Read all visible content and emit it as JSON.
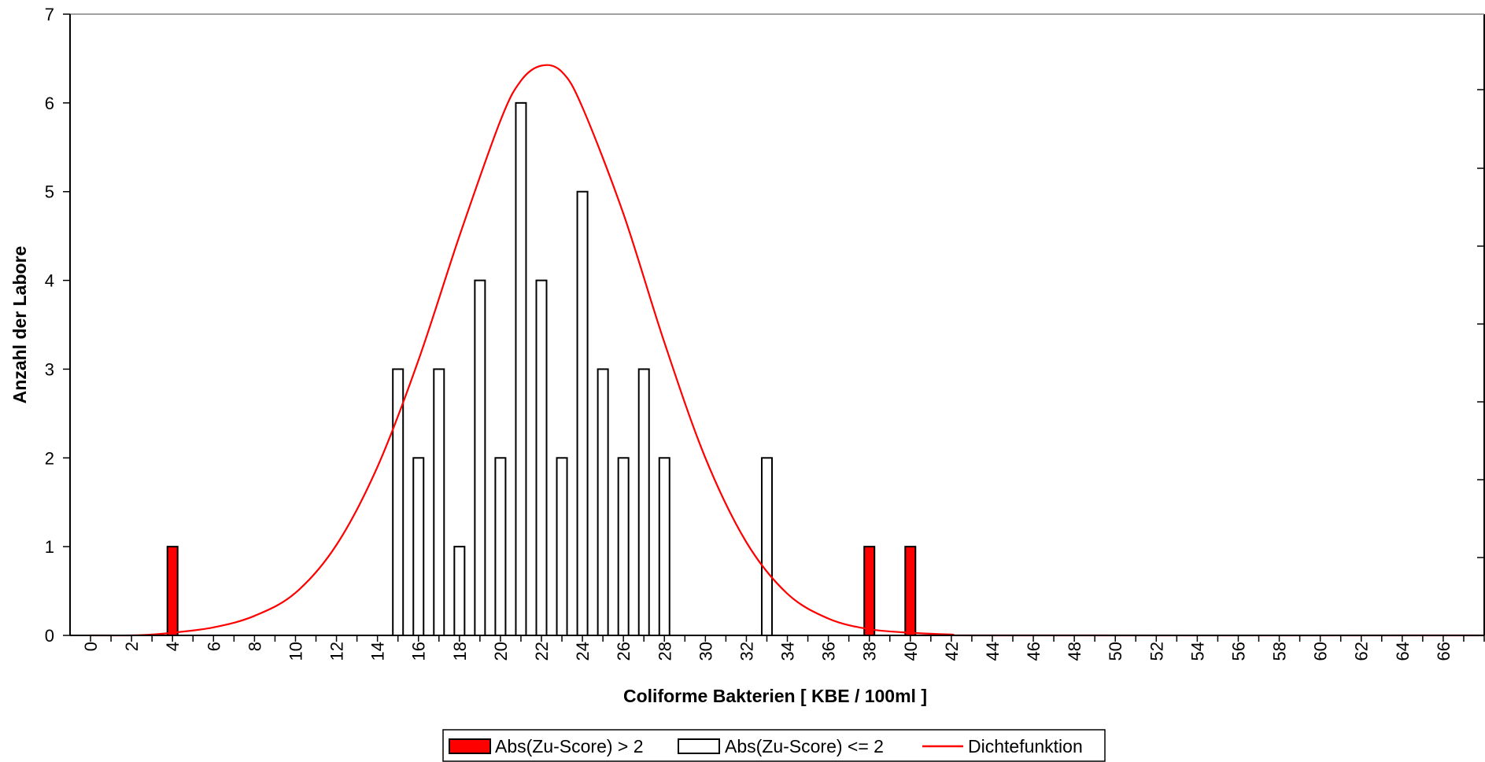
{
  "chart_data": {
    "type": "bar",
    "xlabel": "Coliforme Bakterien [ KBE / 100ml ]",
    "ylabel": "Anzahl der Labore",
    "xlim": [
      -1,
      68
    ],
    "ylim": [
      0,
      7
    ],
    "x_ticks": [
      0,
      2,
      4,
      6,
      8,
      10,
      12,
      14,
      16,
      18,
      20,
      22,
      24,
      26,
      28,
      30,
      32,
      34,
      36,
      38,
      40,
      42,
      44,
      46,
      48,
      50,
      52,
      54,
      56,
      58,
      60,
      62,
      64,
      66
    ],
    "y_ticks": [
      0,
      1,
      2,
      3,
      4,
      5,
      6,
      7
    ],
    "grid": false,
    "legend_position": "bottom-center",
    "colors": {
      "outlier": "#ff0000",
      "normal": "#ffffff",
      "density": "#ff0000",
      "axis": "#000000"
    },
    "series": [
      {
        "name": "Abs(Zu-Score) > 2",
        "points": [
          {
            "x": 4,
            "y": 1
          },
          {
            "x": 38,
            "y": 1
          },
          {
            "x": 40,
            "y": 1
          }
        ]
      },
      {
        "name": "Abs(Zu-Score) <= 2",
        "points": [
          {
            "x": 15,
            "y": 3
          },
          {
            "x": 16,
            "y": 2
          },
          {
            "x": 17,
            "y": 3
          },
          {
            "x": 18,
            "y": 1
          },
          {
            "x": 19,
            "y": 4
          },
          {
            "x": 20,
            "y": 2
          },
          {
            "x": 21,
            "y": 6
          },
          {
            "x": 22,
            "y": 4
          },
          {
            "x": 23,
            "y": 2
          },
          {
            "x": 24,
            "y": 5
          },
          {
            "x": 25,
            "y": 3
          },
          {
            "x": 26,
            "y": 2
          },
          {
            "x": 27,
            "y": 3
          },
          {
            "x": 28,
            "y": 2
          },
          {
            "x": 33,
            "y": 2
          }
        ]
      },
      {
        "name": "Dichtefunktion",
        "kind": "line",
        "points": [
          {
            "x": 0,
            "y": 0
          },
          {
            "x": 2,
            "y": 0
          },
          {
            "x": 3,
            "y": 0.01
          },
          {
            "x": 4,
            "y": 0.03
          },
          {
            "x": 6,
            "y": 0.09
          },
          {
            "x": 8,
            "y": 0.22
          },
          {
            "x": 10,
            "y": 0.48
          },
          {
            "x": 12,
            "y": 1.02
          },
          {
            "x": 14,
            "y": 1.9
          },
          {
            "x": 16,
            "y": 3.1
          },
          {
            "x": 18,
            "y": 4.5
          },
          {
            "x": 20,
            "y": 5.8
          },
          {
            "x": 21,
            "y": 6.25
          },
          {
            "x": 22,
            "y": 6.42
          },
          {
            "x": 23,
            "y": 6.35
          },
          {
            "x": 24,
            "y": 5.95
          },
          {
            "x": 26,
            "y": 4.75
          },
          {
            "x": 28,
            "y": 3.3
          },
          {
            "x": 30,
            "y": 2.0
          },
          {
            "x": 32,
            "y": 1.05
          },
          {
            "x": 34,
            "y": 0.47
          },
          {
            "x": 36,
            "y": 0.19
          },
          {
            "x": 38,
            "y": 0.07
          },
          {
            "x": 40,
            "y": 0.03
          },
          {
            "x": 42,
            "y": 0.01
          },
          {
            "x": 44,
            "y": 0
          },
          {
            "x": 68,
            "y": 0
          }
        ]
      }
    ]
  }
}
